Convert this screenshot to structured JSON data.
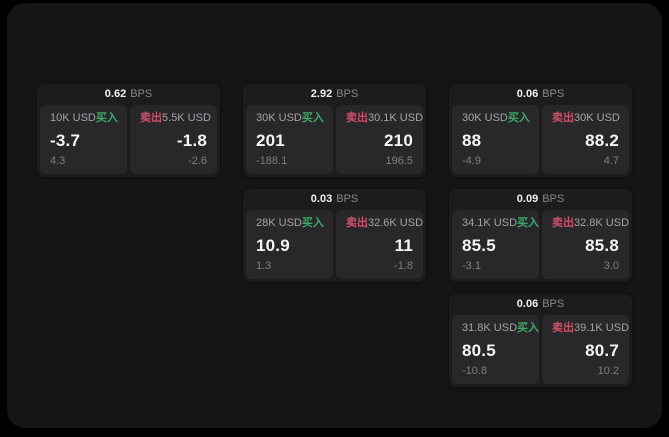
{
  "labels": {
    "bps": "BPS",
    "buy": "买入",
    "sell": "卖出"
  },
  "colors": {
    "page_bg": "#151517",
    "card_bg": "#1c1c1e",
    "panel_bg": "#28282b",
    "buy_accent": "#3cab68",
    "sell_accent": "#cd5069"
  },
  "cards": [
    {
      "bps": "0.62",
      "buy": {
        "size": "10K USD",
        "value": "-3.7",
        "sub": "4.3"
      },
      "sell": {
        "size": "5.5K USD",
        "value": "-1.8",
        "sub": "-2.6"
      }
    },
    {
      "bps": "2.92",
      "buy": {
        "size": "30K USD",
        "value": "201",
        "sub": "-188.1"
      },
      "sell": {
        "size": "30.1K USD",
        "value": "210",
        "sub": "196.5"
      }
    },
    {
      "bps": "0.06",
      "buy": {
        "size": "30K USD",
        "value": "88",
        "sub": "-4.9"
      },
      "sell": {
        "size": "30K USD",
        "value": "88.2",
        "sub": "4.7"
      }
    },
    {
      "bps": "0.03",
      "buy": {
        "size": "28K USD",
        "value": "10.9",
        "sub": "1.3"
      },
      "sell": {
        "size": "32.6K USD",
        "value": "11",
        "sub": "-1.8"
      }
    },
    {
      "bps": "0.09",
      "buy": {
        "size": "34.1K USD",
        "value": "85.5",
        "sub": "-3.1"
      },
      "sell": {
        "size": "32.8K USD",
        "value": "85.8",
        "sub": "3.0"
      }
    },
    {
      "bps": "0.06",
      "buy": {
        "size": "31.8K USD",
        "value": "80.5",
        "sub": "-10.8"
      },
      "sell": {
        "size": "39.1K USD",
        "value": "80.7",
        "sub": "10.2"
      }
    }
  ]
}
